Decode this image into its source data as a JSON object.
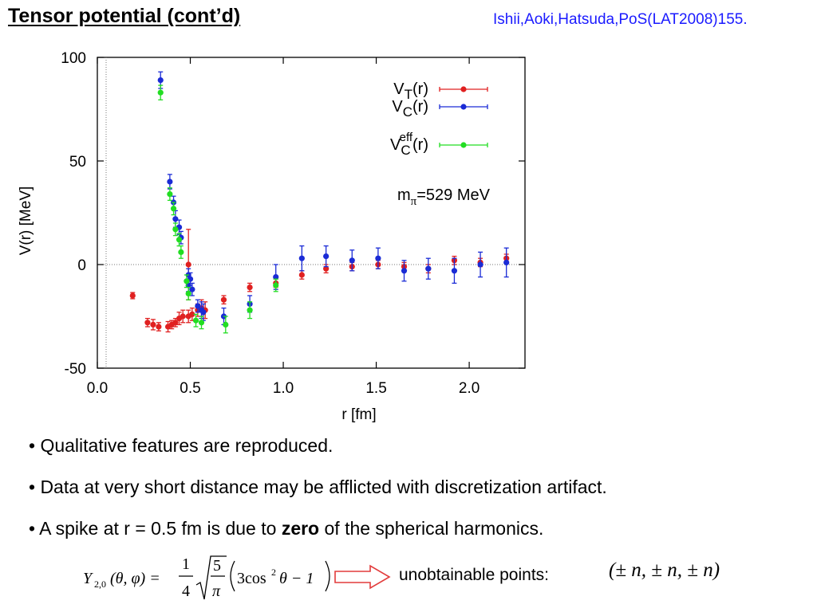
{
  "slide": {
    "title": "Tensor potential (cont’d)",
    "reference": "Ishii,Aoki,Hatsuda,PoS(LAT2008)155.",
    "bullets": [
      {
        "prefix": "• Qualitative features are reproduced.",
        "bold": "",
        "suffix": ""
      },
      {
        "prefix": "• Data at very short distance may be afflicted with discretization artifact.",
        "bold": "",
        "suffix": ""
      },
      {
        "prefix": "• A spike at r = 0.5 fm is due to ",
        "bold": "zero",
        "suffix": " of the spherical harmonics."
      }
    ],
    "formula": {
      "lhs": "Y",
      "lhs_sub": "2,0",
      "lhs_args": "(θ, φ) =",
      "frac1_num": "1",
      "frac1_den": "4",
      "frac2_num": "5",
      "frac2_den": "π",
      "paren_body_a": "3cos",
      "paren_sup": "2",
      "paren_body_b": "θ − 1"
    },
    "unobtainable_label": "unobtainable points:",
    "unobtainable_points": "(± n, ± n, ± n)",
    "arrow_color": "#e23c3c"
  },
  "chart_data": {
    "type": "scatter",
    "title": "",
    "xlabel": "r [fm]",
    "ylabel": "V(r) [MeV]",
    "xlim": [
      0,
      2.3
    ],
    "ylim": [
      -50,
      100
    ],
    "xticks": [
      0.0,
      0.5,
      1.0,
      1.5,
      2.0
    ],
    "xtick_labels": [
      "0.0",
      "0.5",
      "1.0",
      "1.5",
      "2.0"
    ],
    "yticks": [
      -50,
      0,
      50,
      100
    ],
    "ytick_labels": [
      "-50",
      "0",
      "50",
      "100"
    ],
    "zero_line": true,
    "grid": false,
    "legend_position": "top-right",
    "annotation": {
      "text": "m",
      "sub": "π",
      "rest": "=529 MeV",
      "x": 1.62,
      "y": 33
    },
    "series": [
      {
        "name": "V_T(r)",
        "label_main": "V",
        "label_sub": "T",
        "label_sup": "",
        "label_rest": "(r)",
        "color": "#e02020",
        "points": [
          [
            0.19,
            -15,
            1.5
          ],
          [
            0.27,
            -28,
            2
          ],
          [
            0.3,
            -29,
            2.5
          ],
          [
            0.33,
            -30,
            2
          ],
          [
            0.38,
            -30,
            2.5
          ],
          [
            0.4,
            -29,
            2
          ],
          [
            0.42,
            -28,
            2
          ],
          [
            0.44,
            -26,
            3
          ],
          [
            0.46,
            -25,
            3
          ],
          [
            0.49,
            -25,
            3
          ],
          [
            0.49,
            0,
            17
          ],
          [
            0.51,
            -24,
            3
          ],
          [
            0.54,
            -22,
            3
          ],
          [
            0.56,
            -21,
            4
          ],
          [
            0.58,
            -22,
            4
          ],
          [
            0.68,
            -17,
            2
          ],
          [
            0.82,
            -11,
            2
          ],
          [
            0.96,
            -9,
            2
          ],
          [
            1.1,
            -5,
            2
          ],
          [
            1.23,
            -2,
            2
          ],
          [
            1.37,
            -1,
            2
          ],
          [
            1.51,
            0,
            2
          ],
          [
            1.65,
            -1,
            2
          ],
          [
            1.78,
            -2,
            2
          ],
          [
            1.92,
            2,
            2
          ],
          [
            2.06,
            1,
            2
          ],
          [
            2.2,
            3,
            2
          ]
        ]
      },
      {
        "name": "V_C(r)",
        "label_main": "V",
        "label_sub": "C",
        "label_sup": "",
        "label_rest": "(r)",
        "color": "#1a2bd6",
        "points": [
          [
            0.34,
            89,
            4
          ],
          [
            0.39,
            40,
            3.5
          ],
          [
            0.41,
            30,
            3
          ],
          [
            0.42,
            22,
            4
          ],
          [
            0.44,
            18,
            3.5
          ],
          [
            0.45,
            13,
            3
          ],
          [
            0.49,
            -10,
            3
          ],
          [
            0.49,
            -5,
            3
          ],
          [
            0.5,
            -7,
            3
          ],
          [
            0.51,
            -12,
            3
          ],
          [
            0.54,
            -20,
            3
          ],
          [
            0.56,
            -22,
            4
          ],
          [
            0.57,
            -23,
            4
          ],
          [
            0.68,
            -25,
            4
          ],
          [
            0.82,
            -19,
            4
          ],
          [
            0.96,
            -6,
            6
          ],
          [
            1.1,
            3,
            6
          ],
          [
            1.23,
            4,
            5
          ],
          [
            1.37,
            2,
            5
          ],
          [
            1.51,
            3,
            5
          ],
          [
            1.65,
            -3,
            5
          ],
          [
            1.78,
            -2,
            5
          ],
          [
            1.92,
            -3,
            6
          ],
          [
            2.06,
            0,
            6
          ],
          [
            2.2,
            1,
            7
          ]
        ]
      },
      {
        "name": "V_C^eff(r)",
        "label_main": "V",
        "label_sub": "C",
        "label_sup": "eff",
        "label_rest": "(r)",
        "color": "#22dd22",
        "points": [
          [
            0.34,
            83,
            3.5
          ],
          [
            0.39,
            34,
            3
          ],
          [
            0.41,
            27,
            3
          ],
          [
            0.42,
            17,
            3
          ],
          [
            0.44,
            12,
            3
          ],
          [
            0.45,
            6,
            3
          ],
          [
            0.48,
            -8,
            3
          ],
          [
            0.49,
            -14,
            3
          ],
          [
            0.53,
            -27,
            3
          ],
          [
            0.56,
            -28,
            3
          ],
          [
            0.69,
            -29,
            4
          ],
          [
            0.82,
            -22,
            4
          ],
          [
            0.96,
            -10,
            3
          ]
        ]
      }
    ]
  }
}
